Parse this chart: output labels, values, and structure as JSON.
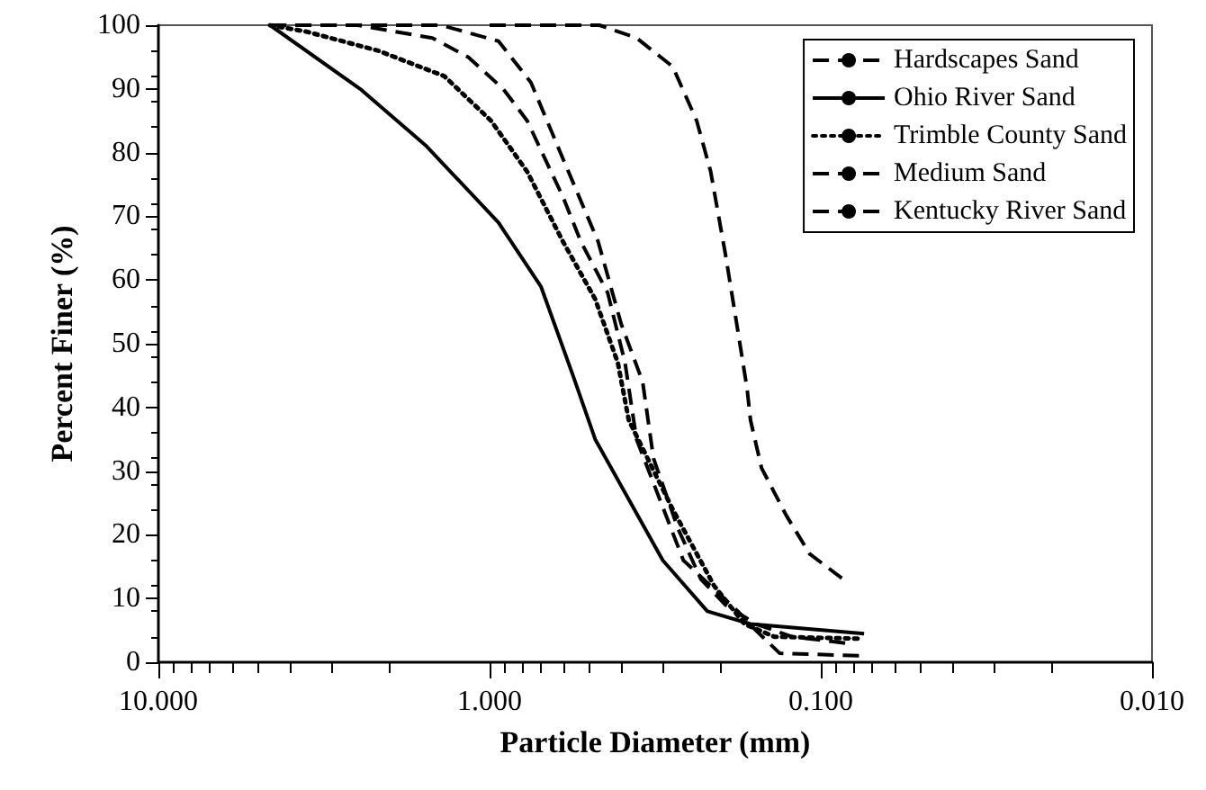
{
  "chart_data": {
    "type": "line",
    "xlabel": "Particle Diameter (mm)",
    "ylabel": "Percent Finer (%)",
    "log": "x",
    "xlim": [
      10,
      0.01
    ],
    "xticks": [
      {
        "value": 10,
        "label": "10.000"
      },
      {
        "value": 1,
        "label": "1.000"
      },
      {
        "value": 0.1,
        "label": "0.100"
      },
      {
        "value": 0.01,
        "label": "0.010"
      }
    ],
    "ylim": [
      0,
      100
    ],
    "yticks": [
      0,
      10,
      20,
      30,
      40,
      50,
      60,
      70,
      80,
      90,
      100
    ],
    "grid": false,
    "legend": "top right",
    "marker": "none",
    "series": [
      {
        "name": "Hardscapes Sand",
        "color": "#000000",
        "line_style": "dashed",
        "x": [
          4.6,
          2.5,
          1.49,
          1.16,
          0.91,
          0.77,
          0.68,
          0.6,
          0.53,
          0.44,
          0.39,
          0.36,
          0.26,
          0.178,
          0.157,
          0.133,
          0.074
        ],
        "values": [
          100,
          100,
          98,
          95,
          90,
          85,
          79,
          73,
          66,
          58,
          47,
          35,
          16,
          8,
          5,
          1.4,
          1
        ]
      },
      {
        "name": "Ohio River Sand",
        "color": "#000000",
        "line_style": "solid",
        "x": [
          4.6,
          2.46,
          1.55,
          0.94,
          0.7,
          0.56,
          0.48,
          0.3,
          0.22,
          0.163,
          0.074
        ],
        "values": [
          100,
          90,
          81,
          69,
          59,
          45,
          35,
          16,
          8,
          6,
          4.5
        ]
      },
      {
        "name": "Trimble County Sand",
        "color": "#000000",
        "line_style": "dotted",
        "x": [
          4.6,
          3.58,
          2.17,
          1.37,
          0.99,
          0.77,
          0.6,
          0.48,
          0.41,
          0.38,
          0.28,
          0.21,
          0.17,
          0.138,
          0.077
        ],
        "values": [
          100,
          99,
          96,
          92,
          85,
          77,
          66,
          57,
          47,
          38,
          24,
          12,
          6,
          4,
          3.7
        ]
      },
      {
        "name": "Medium Sand",
        "color": "#000000",
        "line_style": "dashed",
        "x": [
          4.6,
          1.4,
          0.94,
          0.75,
          0.6,
          0.47,
          0.4,
          0.345,
          0.32,
          0.27,
          0.23,
          0.194,
          0.157,
          0.122,
          0.084
        ],
        "values": [
          100,
          100,
          97.5,
          91,
          79,
          66,
          53,
          44,
          32,
          21,
          13,
          9,
          6,
          4,
          3
        ]
      },
      {
        "name": "Kentucky River Sand",
        "color": "#000000",
        "line_style": "dashed",
        "x": [
          1.0,
          0.466,
          0.36,
          0.28,
          0.237,
          0.215,
          0.194,
          0.178,
          0.167,
          0.163,
          0.151,
          0.127,
          0.108,
          0.084
        ],
        "values": [
          100,
          100,
          98,
          93.5,
          85,
          77,
          64,
          52,
          43,
          38,
          30.5,
          23,
          17,
          12.7
        ]
      }
    ]
  }
}
